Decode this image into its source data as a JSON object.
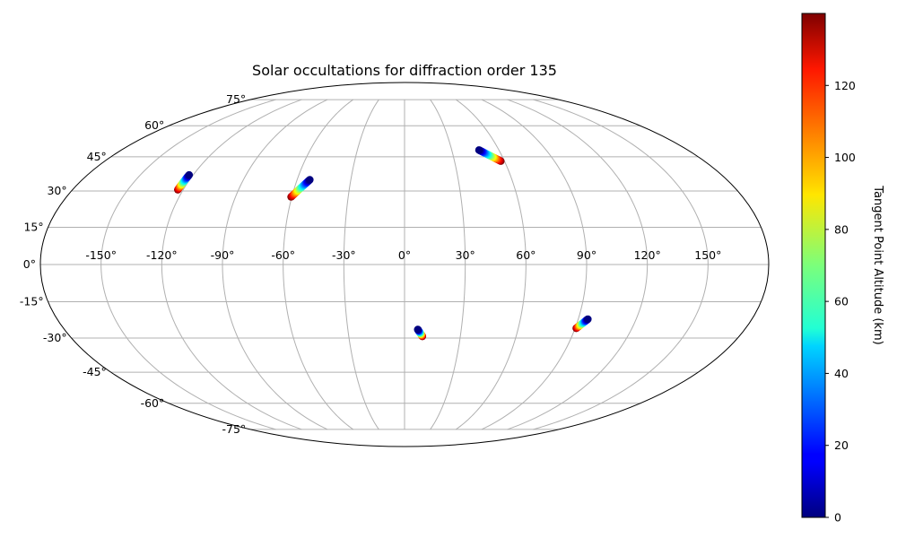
{
  "chart_data": {
    "type": "scatter",
    "projection": "mollweide",
    "title": "Solar occultations for diffraction order 135",
    "xlabel": "",
    "ylabel": "",
    "grid": true,
    "longitude_ticks": [
      "-150°",
      "-120°",
      "-90°",
      "-60°",
      "-30°",
      "0°",
      "30°",
      "60°",
      "90°",
      "120°",
      "150°"
    ],
    "latitude_ticks": [
      "75°",
      "60°",
      "45°",
      "30°",
      "15°",
      "0°",
      "-15°",
      "-30°",
      "-45°",
      "-60°",
      "-75°"
    ],
    "colorbar": {
      "label": "Tangent Point Altitude (km)",
      "colormap": "jet",
      "range": [
        0,
        140
      ],
      "ticks": [
        "0",
        "20",
        "40",
        "60",
        "80",
        "100",
        "120"
      ]
    },
    "tracks": [
      {
        "lon_start": -122.3,
        "lat_start": 36.9,
        "alt_start": 0,
        "lon_end": -122.9,
        "lat_end": 30.5,
        "alt_end": 140
      },
      {
        "lon_start": -52.9,
        "lat_start": 34.8,
        "alt_start": 0,
        "lon_end": -60.4,
        "lat_end": 27.5,
        "alt_end": 140
      },
      {
        "lon_start": 47.3,
        "lat_start": 48.1,
        "alt_start": 0,
        "lon_end": 57.8,
        "lat_end": 43.0,
        "alt_end": 140
      },
      {
        "lon_start": 7.0,
        "lat_start": -26.4,
        "alt_start": 0,
        "lon_end": 9.6,
        "lat_end": -29.3,
        "alt_end": 140
      },
      {
        "lon_start": 95.0,
        "lat_start": -22.1,
        "alt_start": 0,
        "lon_end": 90.6,
        "lat_end": -25.9,
        "alt_end": 140
      }
    ]
  }
}
